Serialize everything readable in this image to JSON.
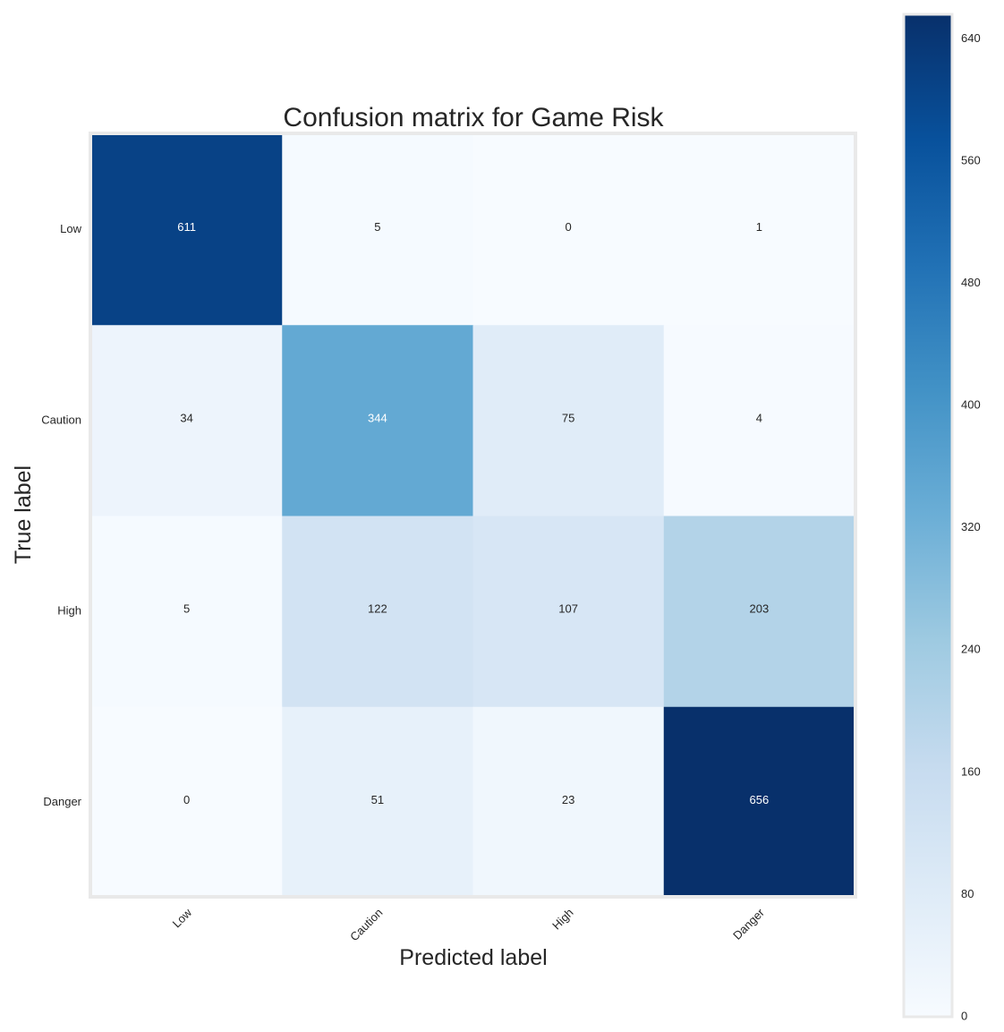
{
  "chart_data": {
    "type": "heatmap",
    "title": "Confusion matrix for Game Risk",
    "xlabel": "Predicted label",
    "ylabel": "True label",
    "x_categories": [
      "Low",
      "Caution",
      "High",
      "Danger"
    ],
    "y_categories": [
      "Low",
      "Caution",
      "High",
      "Danger"
    ],
    "values": [
      [
        611,
        5,
        0,
        1
      ],
      [
        34,
        344,
        75,
        4
      ],
      [
        5,
        122,
        107,
        203
      ],
      [
        0,
        51,
        23,
        656
      ]
    ],
    "colorbar": {
      "min": 0,
      "max": 656,
      "ticks": [
        0,
        80,
        160,
        240,
        320,
        400,
        480,
        560,
        640
      ]
    },
    "colormap": [
      "#f7fbff",
      "#deebf7",
      "#c6dbef",
      "#9ecae1",
      "#6baed6",
      "#4292c6",
      "#2171b5",
      "#08519c",
      "#08306b"
    ],
    "grid": false
  }
}
